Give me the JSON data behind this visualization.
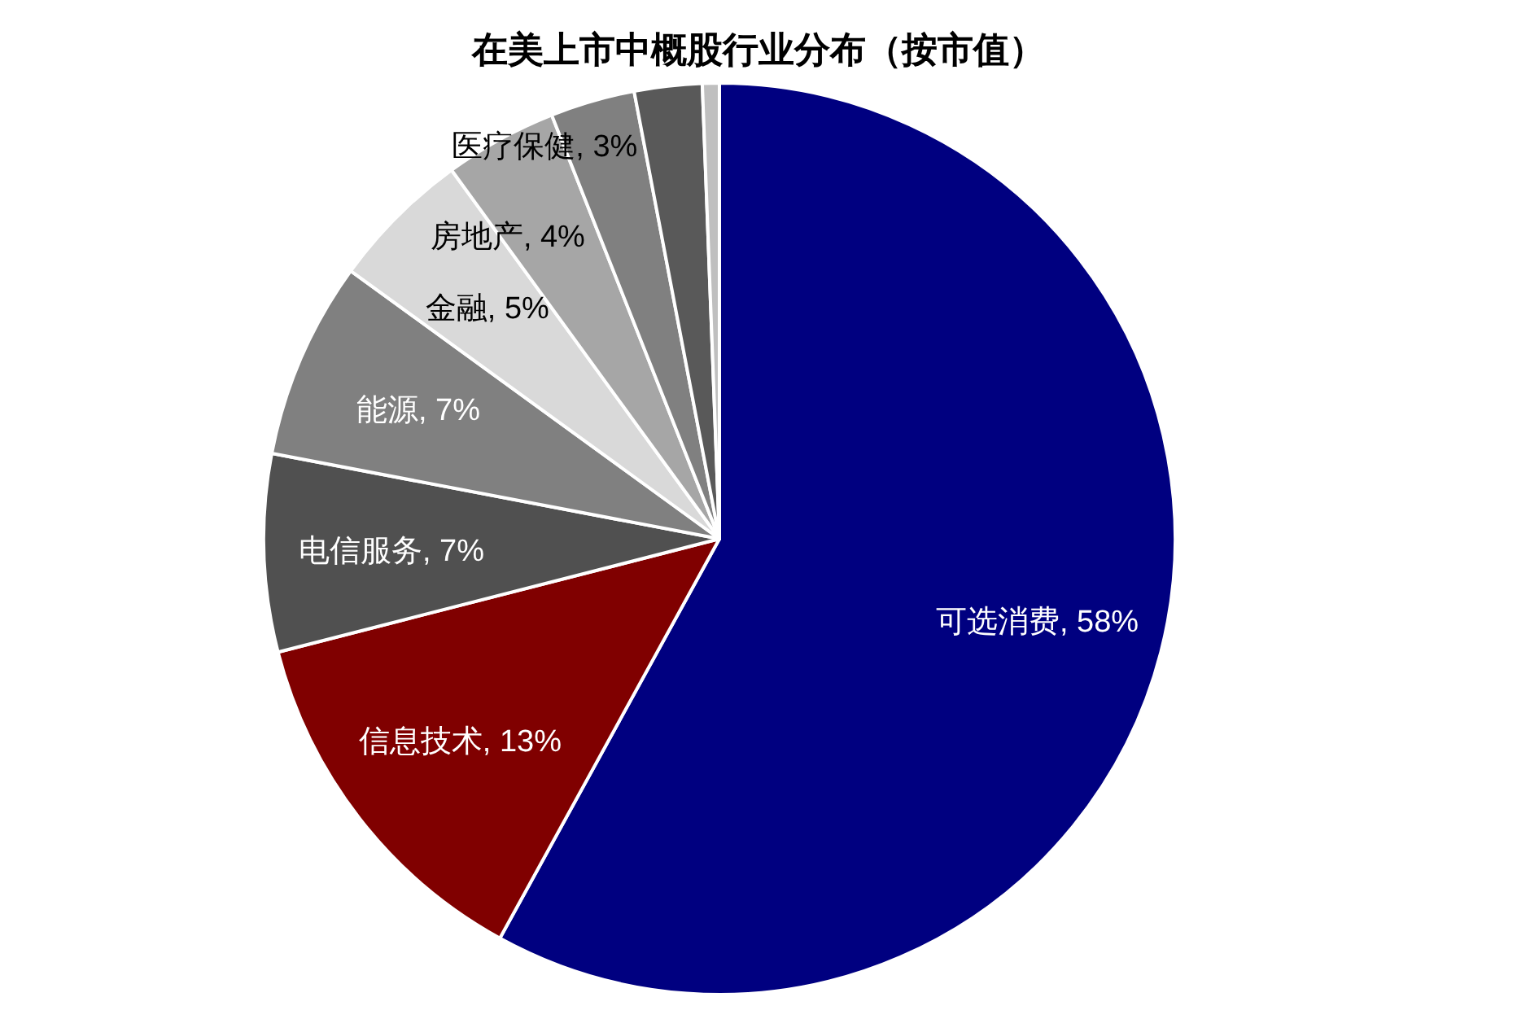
{
  "chart_data": {
    "type": "pie",
    "title": "在美上市中概股行业分布（按市值）",
    "categories": [
      "可选消费",
      "信息技术",
      "电信服务",
      "能源",
      "金融",
      "房地产",
      "医疗保健",
      null,
      null
    ],
    "values": [
      58,
      13,
      7,
      7,
      5,
      4,
      3,
      2.4,
      0.6
    ],
    "value_labels": [
      "58%",
      "13%",
      "7%",
      "7%",
      "5%",
      "4%",
      "3%",
      null,
      null
    ],
    "colors": [
      "#000080",
      "#800000",
      "#505050",
      "#808080",
      "#d9d9d9",
      "#a6a6a6",
      "#808080",
      "#595959",
      "#bfbfbf"
    ]
  }
}
